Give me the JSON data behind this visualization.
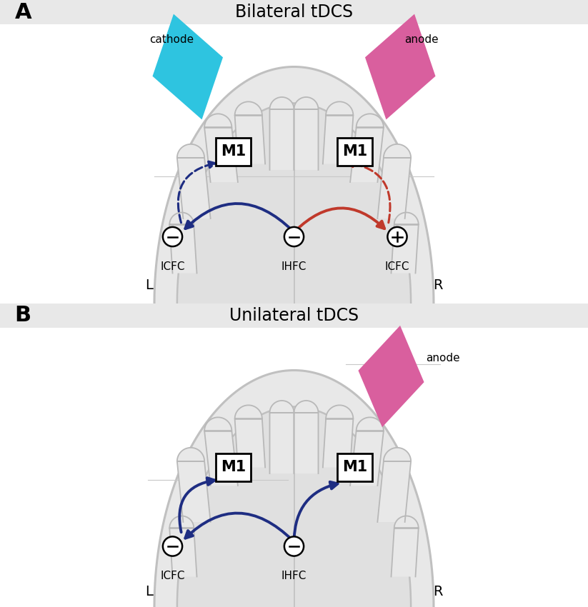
{
  "fig_width": 8.23,
  "fig_height": 8.5,
  "bg_color": "#ffffff",
  "header_bg": "#e8e8e8",
  "skull_fill": "#e8e8e8",
  "skull_edge": "#c0c0c0",
  "brain_fill": "#e0e0e0",
  "brain_edge": "#c0c0c0",
  "gyrus_fill": "#e8e8e8",
  "gyrus_edge": "#c0c0c0",
  "cathode_color": "#2ec4e0",
  "anode_color": "#d95f9e",
  "blue_arrow": "#1e2d82",
  "red_arrow": "#c0392b",
  "panel_A_title": "Bilateral tDCS",
  "panel_B_title": "Unilateral tDCS",
  "label_A": "A",
  "label_B": "B",
  "text_color": "#111111"
}
